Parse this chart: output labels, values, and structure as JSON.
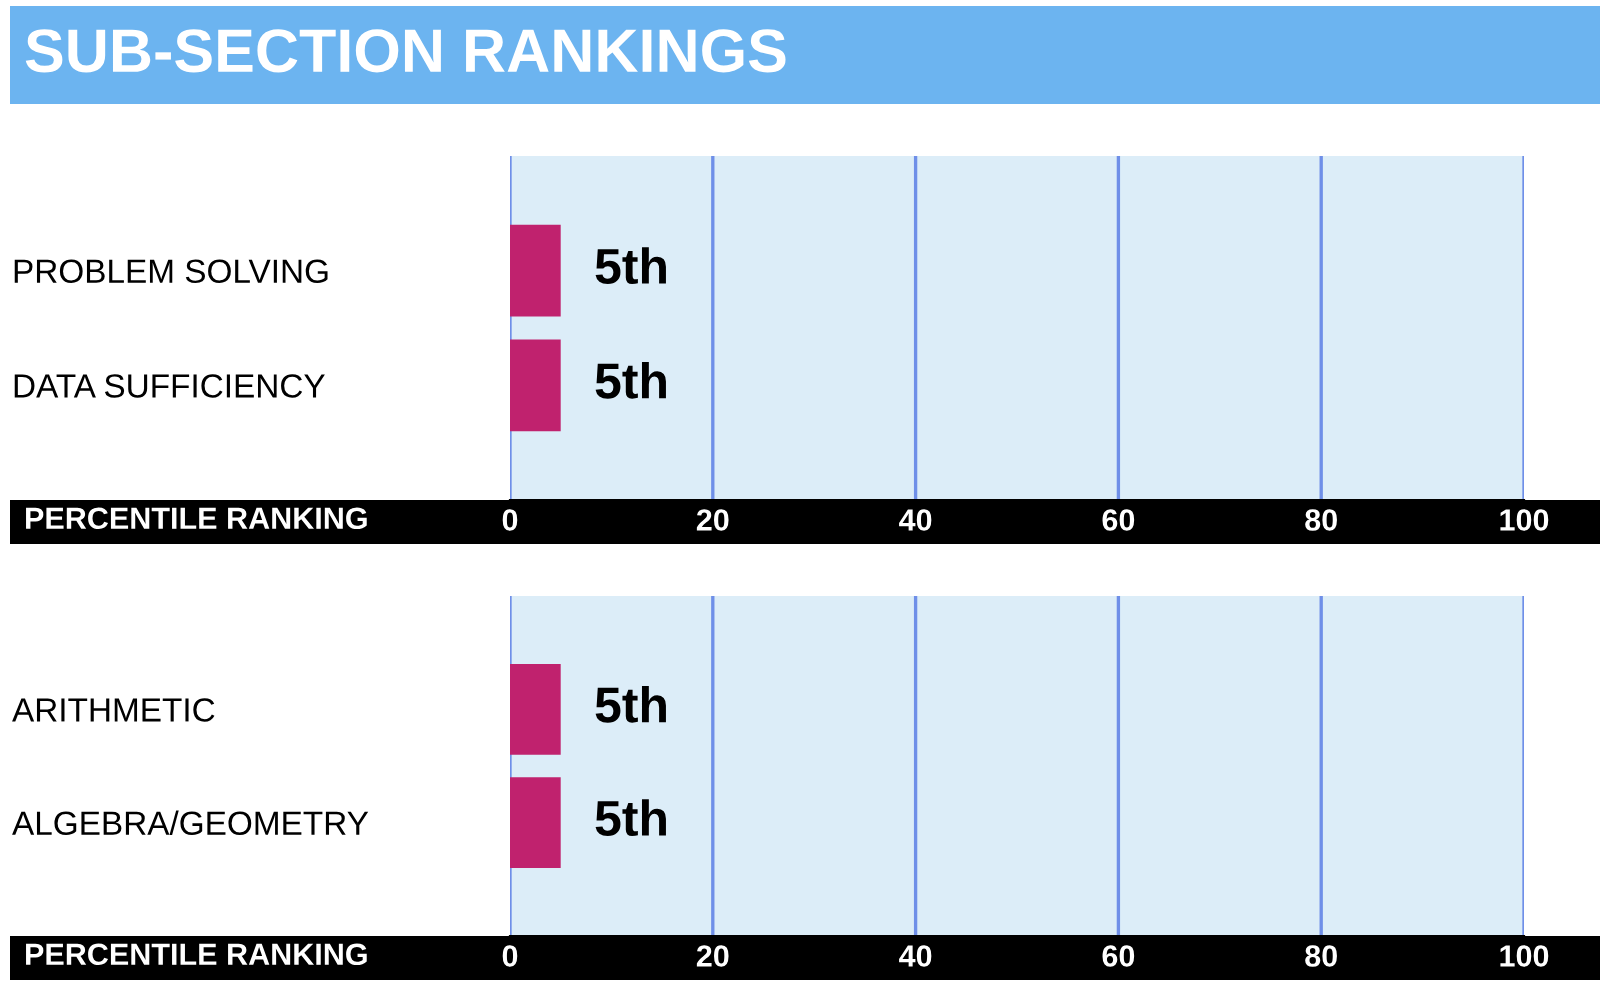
{
  "chart_data": [
    {
      "type": "bar",
      "orientation": "horizontal",
      "title": "SUB-SECTION RANKINGS",
      "xlabel": "PERCENTILE RANKING",
      "categories": [
        "PROBLEM SOLVING",
        "DATA SUFFICIENCY"
      ],
      "values": [
        5,
        5
      ],
      "value_labels": [
        "5th",
        "5th"
      ],
      "color": "#c0226e",
      "xlim": [
        0,
        100
      ],
      "xticks": [
        0,
        20,
        40,
        60,
        80,
        100
      ],
      "grid": "x",
      "legend": false
    },
    {
      "type": "bar",
      "orientation": "horizontal",
      "xlabel": "PERCENTILE RANKING",
      "categories": [
        "ARITHMETIC",
        "ALGEBRA/GEOMETRY"
      ],
      "values": [
        5,
        5
      ],
      "value_labels": [
        "5th",
        "5th"
      ],
      "color": "#c0226e",
      "xlim": [
        0,
        100
      ],
      "xticks": [
        0,
        20,
        40,
        60,
        80,
        100
      ],
      "grid": "x",
      "legend": false
    }
  ]
}
